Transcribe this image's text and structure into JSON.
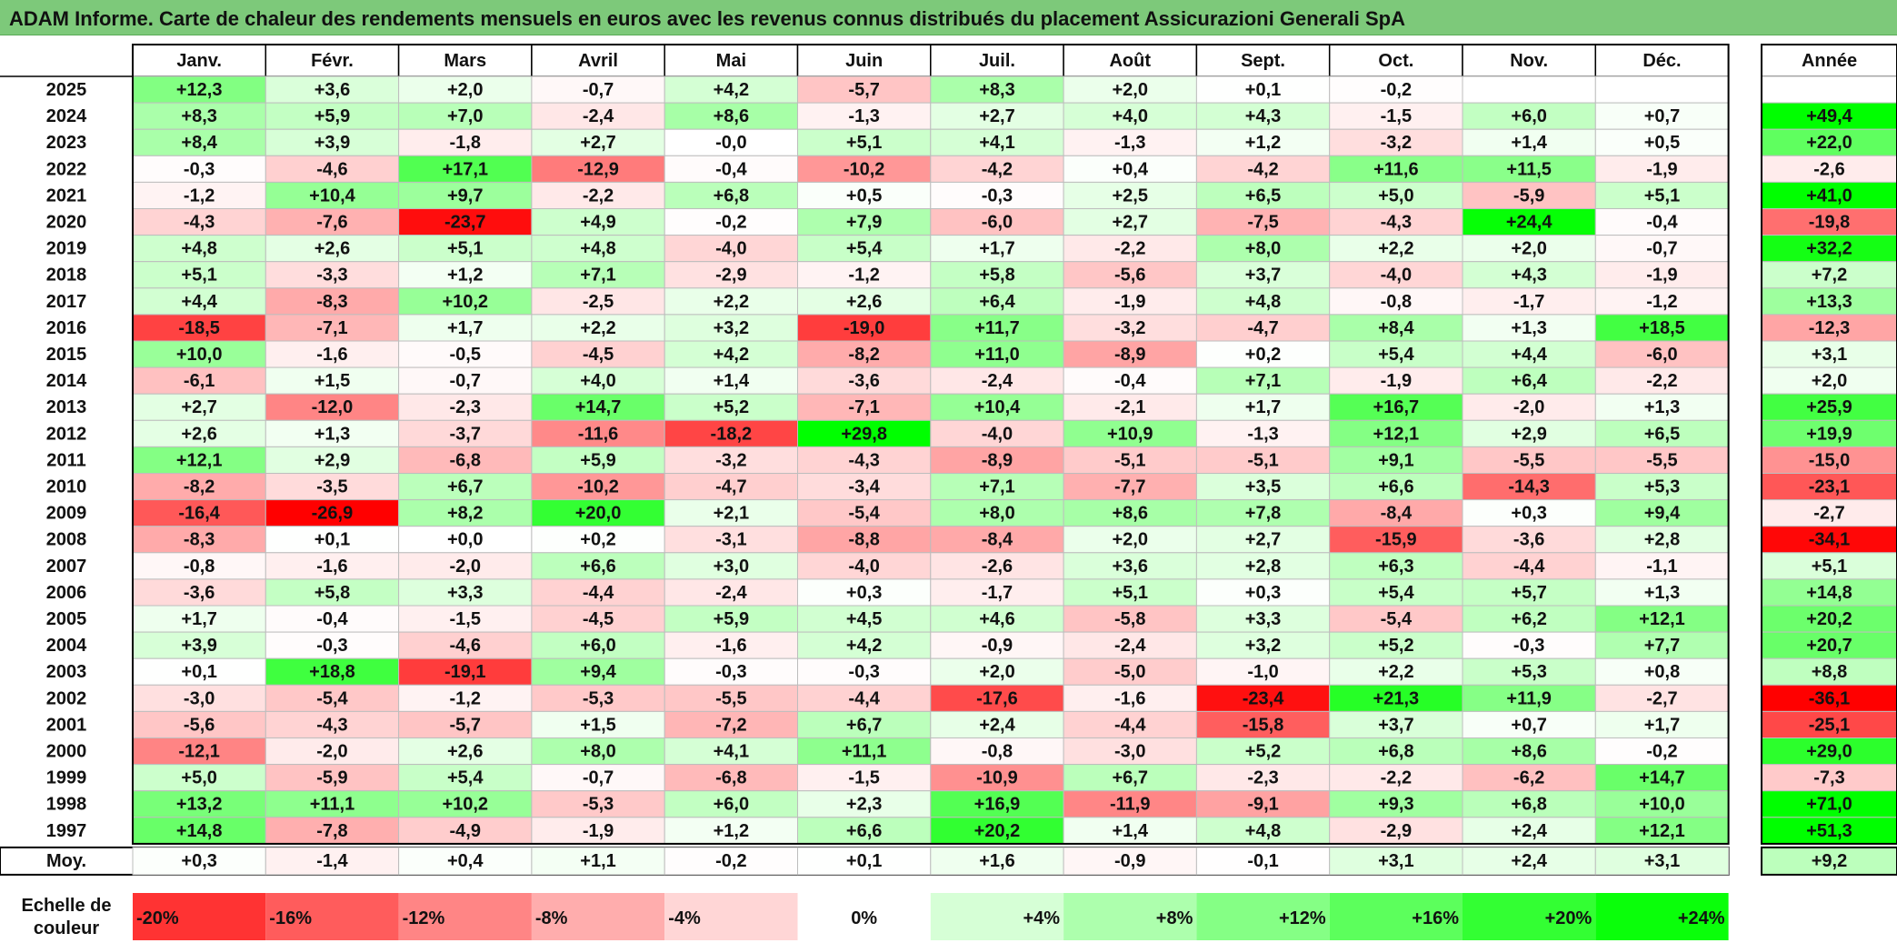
{
  "title": "ADAM Informe. Carte de chaleur des rendements mensuels en euros avec les revenus connus distribués du placement Assicurazioni Generali SpA",
  "chart_data": {
    "type": "heatmap",
    "months": [
      "Janv.",
      "Févr.",
      "Mars",
      "Avril",
      "Mai",
      "Juin",
      "Juil.",
      "Août",
      "Sept.",
      "Oct.",
      "Nov.",
      "Déc."
    ],
    "annual_header": "Année",
    "rows": [
      {
        "year": "2025",
        "values": [
          "+12,3",
          "+3,6",
          "+2,0",
          "-0,7",
          "+4,2",
          "-5,7",
          "+8,3",
          "+2,0",
          "+0,1",
          "-0,2",
          "",
          ""
        ],
        "annual": ""
      },
      {
        "year": "2024",
        "values": [
          "+8,3",
          "+5,9",
          "+7,0",
          "-2,4",
          "+8,6",
          "-1,3",
          "+2,7",
          "+4,0",
          "+4,3",
          "-1,5",
          "+6,0",
          "+0,7"
        ],
        "annual": "+49,4"
      },
      {
        "year": "2023",
        "values": [
          "+8,4",
          "+3,9",
          "-1,8",
          "+2,7",
          "-0,0",
          "+5,1",
          "+4,1",
          "-1,3",
          "+1,2",
          "-3,2",
          "+1,4",
          "+0,5"
        ],
        "annual": "+22,0"
      },
      {
        "year": "2022",
        "values": [
          "-0,3",
          "-4,6",
          "+17,1",
          "-12,9",
          "-0,4",
          "-10,2",
          "-4,2",
          "+0,4",
          "-4,2",
          "+11,6",
          "+11,5",
          "-1,9"
        ],
        "annual": "-2,6"
      },
      {
        "year": "2021",
        "values": [
          "-1,2",
          "+10,4",
          "+9,7",
          "-2,2",
          "+6,8",
          "+0,5",
          "-0,3",
          "+2,5",
          "+6,5",
          "+5,0",
          "-5,9",
          "+5,1"
        ],
        "annual": "+41,0"
      },
      {
        "year": "2020",
        "values": [
          "-4,3",
          "-7,6",
          "-23,7",
          "+4,9",
          "-0,2",
          "+7,9",
          "-6,0",
          "+2,7",
          "-7,5",
          "-4,3",
          "+24,4",
          "-0,4"
        ],
        "annual": "-19,8"
      },
      {
        "year": "2019",
        "values": [
          "+4,8",
          "+2,6",
          "+5,1",
          "+4,8",
          "-4,0",
          "+5,4",
          "+1,7",
          "-2,2",
          "+8,0",
          "+2,2",
          "+2,0",
          "-0,7"
        ],
        "annual": "+32,2"
      },
      {
        "year": "2018",
        "values": [
          "+5,1",
          "-3,3",
          "+1,2",
          "+7,1",
          "-2,9",
          "-1,2",
          "+5,8",
          "-5,6",
          "+3,7",
          "-4,0",
          "+4,3",
          "-1,9"
        ],
        "annual": "+7,2"
      },
      {
        "year": "2017",
        "values": [
          "+4,4",
          "-8,3",
          "+10,2",
          "-2,5",
          "+2,2",
          "+2,6",
          "+6,4",
          "-1,9",
          "+4,8",
          "-0,8",
          "-1,7",
          "-1,2"
        ],
        "annual": "+13,3"
      },
      {
        "year": "2016",
        "values": [
          "-18,5",
          "-7,1",
          "+1,7",
          "+2,2",
          "+3,2",
          "-19,0",
          "+11,7",
          "-3,2",
          "-4,7",
          "+8,4",
          "+1,3",
          "+18,5"
        ],
        "annual": "-12,3"
      },
      {
        "year": "2015",
        "values": [
          "+10,0",
          "-1,6",
          "-0,5",
          "-4,5",
          "+4,2",
          "-8,2",
          "+11,0",
          "-8,9",
          "+0,2",
          "+5,4",
          "+4,4",
          "-6,0"
        ],
        "annual": "+3,1"
      },
      {
        "year": "2014",
        "values": [
          "-6,1",
          "+1,5",
          "-0,7",
          "+4,0",
          "+1,4",
          "-3,6",
          "-2,4",
          "-0,4",
          "+7,1",
          "-1,9",
          "+6,4",
          "-2,2"
        ],
        "annual": "+2,0"
      },
      {
        "year": "2013",
        "values": [
          "+2,7",
          "-12,0",
          "-2,3",
          "+14,7",
          "+5,2",
          "-7,1",
          "+10,4",
          "-2,1",
          "+1,7",
          "+16,7",
          "-2,0",
          "+1,3"
        ],
        "annual": "+25,9"
      },
      {
        "year": "2012",
        "values": [
          "+2,6",
          "+1,3",
          "-3,7",
          "-11,6",
          "-18,2",
          "+29,8",
          "-4,0",
          "+10,9",
          "-1,3",
          "+12,1",
          "+2,9",
          "+6,5"
        ],
        "annual": "+19,9"
      },
      {
        "year": "2011",
        "values": [
          "+12,1",
          "+2,9",
          "-6,8",
          "+5,9",
          "-3,2",
          "-4,3",
          "-8,9",
          "-5,1",
          "-5,1",
          "+9,1",
          "-5,5",
          "-5,5"
        ],
        "annual": "-15,0"
      },
      {
        "year": "2010",
        "values": [
          "-8,2",
          "-3,5",
          "+6,7",
          "-10,2",
          "-4,7",
          "-3,4",
          "+7,1",
          "-7,7",
          "+3,5",
          "+6,6",
          "-14,3",
          "+5,3"
        ],
        "annual": "-23,1"
      },
      {
        "year": "2009",
        "values": [
          "-16,4",
          "-26,9",
          "+8,2",
          "+20,0",
          "+2,1",
          "-5,4",
          "+8,0",
          "+8,6",
          "+7,8",
          "-8,4",
          "+0,3",
          "+9,4"
        ],
        "annual": "-2,7"
      },
      {
        "year": "2008",
        "values": [
          "-8,3",
          "+0,1",
          "+0,0",
          "+0,2",
          "-3,1",
          "-8,8",
          "-8,4",
          "+2,0",
          "+2,7",
          "-15,9",
          "-3,6",
          "+2,8"
        ],
        "annual": "-34,1"
      },
      {
        "year": "2007",
        "values": [
          "-0,8",
          "-1,6",
          "-2,0",
          "+6,6",
          "+3,0",
          "-4,0",
          "-2,6",
          "+3,6",
          "+2,8",
          "+6,3",
          "-4,4",
          "-1,1"
        ],
        "annual": "+5,1"
      },
      {
        "year": "2006",
        "values": [
          "-3,6",
          "+5,8",
          "+3,3",
          "-4,4",
          "-2,4",
          "+0,3",
          "-1,7",
          "+5,1",
          "+0,3",
          "+5,4",
          "+5,7",
          "+1,3"
        ],
        "annual": "+14,8"
      },
      {
        "year": "2005",
        "values": [
          "+1,7",
          "-0,4",
          "-1,5",
          "-4,5",
          "+5,9",
          "+4,5",
          "+4,6",
          "-5,8",
          "+3,3",
          "-5,4",
          "+6,2",
          "+12,1"
        ],
        "annual": "+20,2"
      },
      {
        "year": "2004",
        "values": [
          "+3,9",
          "-0,3",
          "-4,6",
          "+6,0",
          "-1,6",
          "+4,2",
          "-0,9",
          "-2,4",
          "+3,2",
          "+5,2",
          "-0,3",
          "+7,7"
        ],
        "annual": "+20,7"
      },
      {
        "year": "2003",
        "values": [
          "+0,1",
          "+18,8",
          "-19,1",
          "+9,4",
          "-0,3",
          "-0,3",
          "+2,0",
          "-5,0",
          "-1,0",
          "+2,2",
          "+5,3",
          "+0,8"
        ],
        "annual": "+8,8"
      },
      {
        "year": "2002",
        "values": [
          "-3,0",
          "-5,4",
          "-1,2",
          "-5,3",
          "-5,5",
          "-4,4",
          "-17,6",
          "-1,6",
          "-23,4",
          "+21,3",
          "+11,9",
          "-2,7"
        ],
        "annual": "-36,1"
      },
      {
        "year": "2001",
        "values": [
          "-5,6",
          "-4,3",
          "-5,7",
          "+1,5",
          "-7,2",
          "+6,7",
          "+2,4",
          "-4,4",
          "-15,8",
          "+3,7",
          "+0,7",
          "+1,7"
        ],
        "annual": "-25,1"
      },
      {
        "year": "2000",
        "values": [
          "-12,1",
          "-2,0",
          "+2,6",
          "+8,0",
          "+4,1",
          "+11,1",
          "-0,8",
          "-3,0",
          "+5,2",
          "+6,8",
          "+8,6",
          "-0,2"
        ],
        "annual": "+29,0"
      },
      {
        "year": "1999",
        "values": [
          "+5,0",
          "-5,9",
          "+5,4",
          "-0,7",
          "-6,8",
          "-1,5",
          "-10,9",
          "+6,7",
          "-2,3",
          "-2,2",
          "-6,2",
          "+14,7"
        ],
        "annual": "-7,3"
      },
      {
        "year": "1998",
        "values": [
          "+13,2",
          "+11,1",
          "+10,2",
          "-5,3",
          "+6,0",
          "+2,3",
          "+16,9",
          "-11,9",
          "-9,1",
          "+9,3",
          "+6,8",
          "+10,0"
        ],
        "annual": "+71,0"
      },
      {
        "year": "1997",
        "values": [
          "+14,8",
          "-7,8",
          "-4,9",
          "-1,9",
          "+1,2",
          "+6,6",
          "+20,2",
          "+1,4",
          "+4,8",
          "-2,9",
          "+2,4",
          "+12,1"
        ],
        "annual": "+51,3"
      }
    ],
    "average": {
      "label": "Moy.",
      "values": [
        "+0,3",
        "-1,4",
        "+0,4",
        "+1,1",
        "-0,2",
        "+0,1",
        "+1,6",
        "-0,9",
        "-0,1",
        "+3,1",
        "+2,4",
        "+3,1"
      ],
      "annual": "+9,2"
    },
    "scale": {
      "label_line1": "Echelle de",
      "label_line2": "couleur",
      "steps": [
        "-20%",
        "-16%",
        "-12%",
        "-8%",
        "-4%",
        "0%",
        "+4%",
        "+8%",
        "+12%",
        "+16%",
        "+20%",
        "+24%"
      ]
    },
    "colors": {
      "negative": "#ff0000",
      "neutral": "#ffffff",
      "positive": "#00ff00",
      "header": "#7dc97a"
    }
  }
}
